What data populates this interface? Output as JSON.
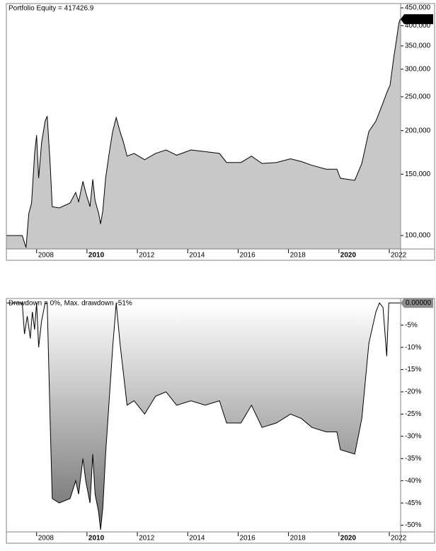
{
  "chart_data": [
    {
      "type": "area",
      "title": "Portfolio Equity = 417426.9",
      "log_y": true,
      "color": "#c8c8c8",
      "line_color": "#000000",
      "x": [
        2006.79,
        2007.43,
        2007.58,
        2007.69,
        2007.8,
        2007.92,
        2008.0,
        2008.08,
        2008.2,
        2008.34,
        2008.42,
        2008.54,
        2008.62,
        2008.9,
        2009.33,
        2009.55,
        2009.67,
        2009.84,
        2009.95,
        2010.12,
        2010.23,
        2010.32,
        2010.46,
        2010.54,
        2010.63,
        2010.74,
        2010.88,
        2011.02,
        2011.16,
        2011.31,
        2011.45,
        2011.59,
        2011.87,
        2012.29,
        2012.72,
        2013.14,
        2013.56,
        2014.13,
        2014.69,
        2015.26,
        2015.54,
        2016.11,
        2016.53,
        2016.95,
        2017.52,
        2018.08,
        2018.51,
        2018.93,
        2019.5,
        2019.92,
        2020.06,
        2020.63,
        2020.91,
        2021.19,
        2021.47,
        2021.75,
        2021.9,
        2022.03,
        2022.18,
        2022.27,
        2022.38,
        2022.43
      ],
      "values": [
        100000,
        100000,
        92300,
        115700,
        124000,
        172000,
        194000,
        146000,
        185000,
        213000,
        220000,
        160000,
        121000,
        120000,
        124000,
        133000,
        125000,
        143000,
        133000,
        121000,
        145000,
        126000,
        116000,
        108000,
        118000,
        146000,
        172000,
        199000,
        218000,
        199000,
        185000,
        169000,
        172000,
        165000,
        172000,
        176000,
        170000,
        176000,
        174000,
        172000,
        162000,
        162000,
        169000,
        161000,
        162000,
        166000,
        163000,
        159000,
        155000,
        155000,
        146000,
        144000,
        161000,
        199000,
        213000,
        240000,
        257000,
        270000,
        325000,
        358000,
        406000,
        417426.9
      ],
      "value_labels": [
        null,
        null,
        null,
        null,
        null,
        null,
        null,
        null,
        null,
        null,
        null,
        null,
        null,
        null,
        null,
        null,
        null,
        null,
        null,
        null,
        null,
        null,
        null,
        null,
        null,
        null,
        null,
        null,
        null,
        null,
        null,
        null,
        null,
        null,
        null,
        null,
        null,
        null,
        null,
        null,
        null,
        null,
        null,
        null,
        null,
        null,
        null,
        null,
        null,
        null,
        null,
        null,
        null,
        null,
        null,
        null,
        null,
        null,
        null,
        null,
        null,
        "417,427"
      ],
      "xlim": [
        2006.8,
        2022.45
      ],
      "xticks": [
        2008,
        2010,
        2012,
        2014,
        2016,
        2018,
        2020,
        2022
      ],
      "ylim": [
        91500,
        463000
      ],
      "yticks": [
        {
          "value": 100000,
          "label": "100,000"
        },
        {
          "value": 150000,
          "label": "150,000"
        },
        {
          "value": 200000,
          "label": "200,000"
        },
        {
          "value": 250000,
          "label": "250,000"
        },
        {
          "value": 300000,
          "label": "300,000"
        },
        {
          "value": 350000,
          "label": "350,000"
        },
        {
          "value": 400000,
          "label": "400,000"
        },
        {
          "value": 450000,
          "label": "450,000"
        }
      ]
    },
    {
      "type": "area",
      "title": "Drawdown = 0%, Max. drawdown -51%",
      "log_y": false,
      "color": "gradient",
      "line_color": "#000000",
      "x": [
        2006.79,
        2007.43,
        2007.52,
        2007.63,
        2007.75,
        2007.83,
        2007.92,
        2008.0,
        2008.08,
        2008.2,
        2008.34,
        2008.42,
        2008.54,
        2008.62,
        2008.9,
        2009.33,
        2009.55,
        2009.67,
        2009.84,
        2009.95,
        2010.12,
        2010.23,
        2010.32,
        2010.46,
        2010.54,
        2010.63,
        2010.74,
        2010.88,
        2011.02,
        2011.16,
        2011.31,
        2011.45,
        2011.59,
        2011.87,
        2012.29,
        2012.72,
        2013.14,
        2013.56,
        2014.13,
        2014.69,
        2015.26,
        2015.54,
        2016.11,
        2016.53,
        2016.95,
        2017.52,
        2018.08,
        2018.51,
        2018.93,
        2019.5,
        2019.92,
        2020.06,
        2020.63,
        2020.91,
        2021.19,
        2021.47,
        2021.61,
        2021.75,
        2021.9,
        2021.98,
        2022.18,
        2022.43
      ],
      "values": [
        0,
        0,
        -7,
        -3,
        -8,
        -2,
        -6,
        0,
        -10,
        -4,
        0,
        0,
        -27,
        -44,
        -45,
        -44,
        -40,
        -43,
        -35,
        -40,
        -45,
        -34,
        -43,
        -47,
        -51,
        -46,
        -34,
        -22,
        -10,
        0,
        -9,
        -16,
        -23,
        -22,
        -25,
        -21,
        -20,
        -23,
        -22,
        -23,
        -22,
        -27,
        -27,
        -23,
        -28,
        -27,
        -25,
        -26,
        -28,
        -29,
        -29,
        -33,
        -34,
        -26,
        -9,
        -2,
        0,
        -1,
        -12,
        0,
        0,
        0
      ],
      "value_labels": [
        null,
        null,
        null,
        null,
        null,
        null,
        null,
        null,
        null,
        null,
        null,
        null,
        null,
        null,
        null,
        null,
        null,
        null,
        null,
        null,
        null,
        null,
        null,
        null,
        null,
        null,
        null,
        null,
        null,
        null,
        null,
        null,
        null,
        null,
        null,
        null,
        null,
        null,
        null,
        null,
        null,
        null,
        null,
        null,
        null,
        null,
        null,
        null,
        null,
        null,
        null,
        null,
        null,
        null,
        null,
        null,
        null,
        null,
        null,
        null,
        null,
        "0.00000"
      ],
      "xlim": [
        2006.8,
        2022.45
      ],
      "xticks": [
        2008,
        2010,
        2012,
        2014,
        2016,
        2018,
        2020,
        2022
      ],
      "ylim": [
        -51.5,
        1
      ],
      "yticks": [
        {
          "value": -5,
          "label": "-5%"
        },
        {
          "value": -10,
          "label": "-10%"
        },
        {
          "value": -15,
          "label": "-15%"
        },
        {
          "value": -20,
          "label": "-20%"
        },
        {
          "value": -25,
          "label": "-25%"
        },
        {
          "value": -30,
          "label": "-30%"
        },
        {
          "value": -35,
          "label": "-35%"
        },
        {
          "value": -40,
          "label": "-40%"
        },
        {
          "value": -45,
          "label": "-45%"
        },
        {
          "value": -50,
          "label": "-50%"
        }
      ]
    }
  ]
}
